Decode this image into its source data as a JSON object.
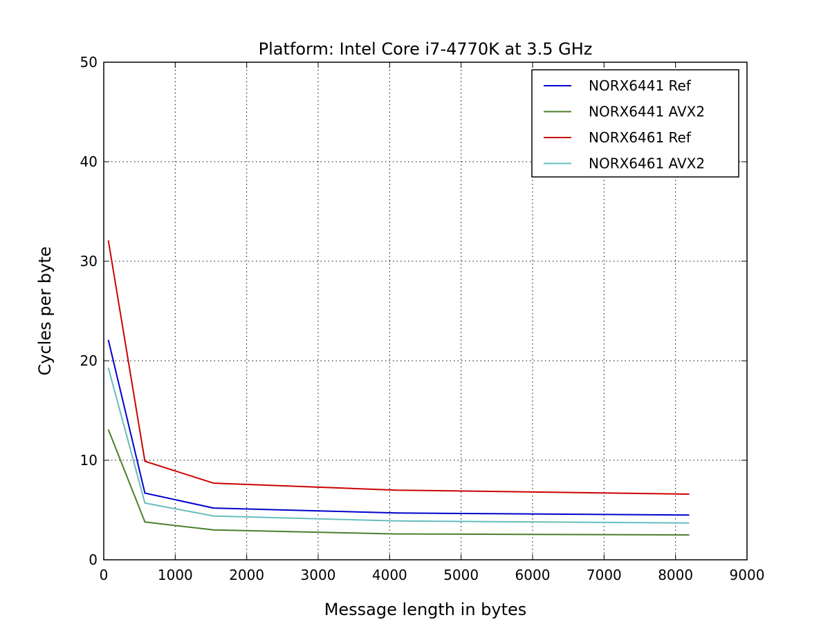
{
  "chart_data": {
    "type": "line",
    "title": "Platform: Intel Core i7-4770K at 3.5 GHz",
    "xlabel": "Message length in bytes",
    "ylabel": "Cycles per byte",
    "xlim": [
      0,
      9000
    ],
    "ylim": [
      0,
      50
    ],
    "x_ticks": [
      "0",
      "1000",
      "2000",
      "3000",
      "4000",
      "5000",
      "6000",
      "7000",
      "8000",
      "9000"
    ],
    "y_ticks": [
      "0",
      "10",
      "20",
      "30",
      "40",
      "50"
    ],
    "grid": true,
    "legend_position": "top-right",
    "series": [
      {
        "name": "NORX6441 Ref",
        "color": "#0000cc",
        "x": [
          64,
          576,
          1536,
          4096,
          8192
        ],
        "y": [
          22.1,
          6.7,
          5.2,
          4.7,
          4.5
        ]
      },
      {
        "name": "NORX6441 AVX2",
        "color": "#4a7f2a",
        "x": [
          64,
          576,
          1536,
          4096,
          8192
        ],
        "y": [
          13.1,
          3.8,
          3.0,
          2.6,
          2.5
        ]
      },
      {
        "name": "NORX6461 Ref",
        "color": "#cc0000",
        "x": [
          64,
          576,
          1536,
          4096,
          8192
        ],
        "y": [
          32.1,
          9.9,
          7.7,
          7.0,
          6.6
        ]
      },
      {
        "name": "NORX6461 AVX2",
        "color": "#66bdbd",
        "x": [
          64,
          576,
          1536,
          4096,
          8192
        ],
        "y": [
          19.3,
          5.7,
          4.4,
          3.9,
          3.7
        ]
      }
    ]
  }
}
